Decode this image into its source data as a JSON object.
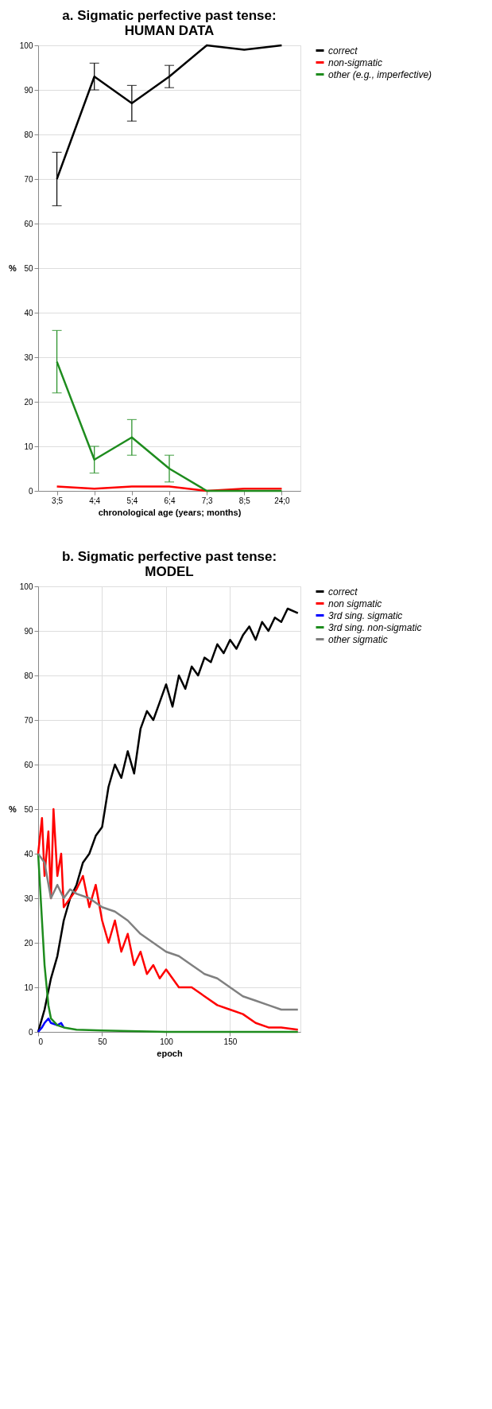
{
  "chart_data": [
    {
      "type": "line",
      "title": "a. Sigmatic perfective past tense:\nHUMAN DATA",
      "xlabel": "chronological age (years; months)",
      "ylabel": "%",
      "categories": [
        "3;5",
        "4;4",
        "5;4",
        "6;4",
        "7;3",
        "8;5",
        "24;0"
      ],
      "ylim": [
        0,
        100
      ],
      "yticks": [
        0,
        10,
        20,
        30,
        40,
        50,
        60,
        70,
        80,
        90,
        100
      ],
      "grid": "y",
      "legend": "right",
      "marker": "none",
      "line_style": "solid",
      "series": [
        {
          "name": "correct",
          "color": "#000000",
          "values": [
            70,
            93,
            87,
            93,
            100,
            99,
            100
          ],
          "errors": [
            6,
            3,
            4,
            2.5,
            null,
            null,
            null
          ]
        },
        {
          "name": "non-sigmatic",
          "color": "#ff0000",
          "values": [
            1,
            0.5,
            1,
            1,
            0,
            0.5,
            0.5
          ]
        },
        {
          "name": "other (e.g., imperfective)",
          "color": "#1e8c1e",
          "values": [
            29,
            7,
            12,
            5,
            0,
            0,
            0
          ],
          "errors": [
            7,
            3,
            4,
            3,
            null,
            null,
            null
          ]
        }
      ]
    },
    {
      "type": "line",
      "title": "b. Sigmatic perfective past tense:\nMODEL",
      "xlabel": "epoch",
      "ylabel": "%",
      "xlim": [
        0,
        205
      ],
      "xticks": [
        0,
        50,
        100,
        150
      ],
      "ylim": [
        0,
        100
      ],
      "yticks": [
        0,
        10,
        20,
        30,
        40,
        50,
        60,
        70,
        80,
        90,
        100
      ],
      "grid": true,
      "legend": "right",
      "marker": "none",
      "line_style": "solid",
      "series": [
        {
          "name": "correct",
          "color": "#000000",
          "x": [
            0,
            5,
            10,
            15,
            20,
            25,
            30,
            35,
            40,
            45,
            50,
            55,
            60,
            65,
            70,
            75,
            80,
            85,
            90,
            95,
            100,
            105,
            110,
            115,
            120,
            125,
            130,
            135,
            140,
            145,
            150,
            155,
            160,
            165,
            170,
            175,
            180,
            185,
            190,
            195,
            203
          ],
          "values": [
            0,
            5,
            12,
            17,
            25,
            30,
            33,
            38,
            40,
            44,
            46,
            55,
            60,
            57,
            63,
            58,
            68,
            72,
            70,
            74,
            78,
            73,
            80,
            77,
            82,
            80,
            84,
            83,
            87,
            85,
            88,
            86,
            89,
            91,
            88,
            92,
            90,
            93,
            92,
            95,
            94
          ]
        },
        {
          "name": "non sigmatic",
          "color": "#ff0000",
          "x": [
            0,
            3,
            5,
            8,
            10,
            12,
            15,
            18,
            20,
            25,
            30,
            35,
            40,
            45,
            50,
            55,
            60,
            65,
            70,
            75,
            80,
            85,
            90,
            95,
            100,
            110,
            120,
            130,
            140,
            150,
            160,
            170,
            180,
            190,
            203
          ],
          "values": [
            40,
            48,
            35,
            45,
            30,
            50,
            35,
            40,
            28,
            30,
            32,
            35,
            28,
            33,
            25,
            20,
            25,
            18,
            22,
            15,
            18,
            13,
            15,
            12,
            14,
            10,
            10,
            8,
            6,
            5,
            4,
            2,
            1,
            1,
            0.5
          ]
        },
        {
          "name": "3rd sing.  sigmatic",
          "color": "#0000ff",
          "x": [
            0,
            3,
            5,
            8,
            10,
            15,
            18,
            20
          ],
          "values": [
            0,
            1,
            2,
            3,
            2,
            1.5,
            2,
            1
          ]
        },
        {
          "name": "3rd sing. non-sigmatic",
          "color": "#1e8c1e",
          "x": [
            0,
            3,
            5,
            8,
            10,
            15,
            20,
            30,
            50,
            100,
            203
          ],
          "values": [
            40,
            25,
            15,
            6,
            3,
            1.5,
            1,
            0.5,
            0.3,
            0,
            0
          ]
        },
        {
          "name": "other sigmatic",
          "color": "#808080",
          "x": [
            0,
            5,
            10,
            15,
            20,
            25,
            30,
            40,
            50,
            60,
            70,
            80,
            90,
            100,
            110,
            120,
            130,
            140,
            150,
            160,
            170,
            180,
            190,
            203
          ],
          "values": [
            40,
            38,
            30,
            33,
            30,
            32,
            31,
            30,
            28,
            27,
            25,
            22,
            20,
            18,
            17,
            15,
            13,
            12,
            10,
            8,
            7,
            6,
            5,
            5
          ]
        }
      ]
    }
  ]
}
